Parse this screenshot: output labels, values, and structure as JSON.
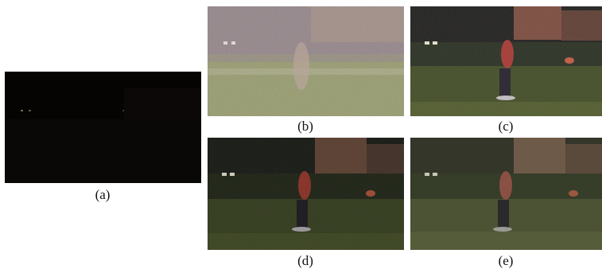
{
  "figure": {
    "panels": [
      {
        "id": "a",
        "caption": "(a)",
        "description_icon": "photo-dark-input"
      },
      {
        "id": "b",
        "caption": "(b)",
        "description_icon": "photo-noisy-enhanced"
      },
      {
        "id": "c",
        "caption": "(c)",
        "description_icon": "photo-saturated-enhanced"
      },
      {
        "id": "d",
        "caption": "(d)",
        "description_icon": "photo-dim-enhanced"
      },
      {
        "id": "e",
        "caption": "(e)",
        "description_icon": "photo-smooth-enhanced"
      }
    ],
    "colors": {
      "grass": "#4a5a2a",
      "sky": "#1c2418",
      "building": "#7a5a3a",
      "runner_shirt": "#b03a2a"
    }
  }
}
